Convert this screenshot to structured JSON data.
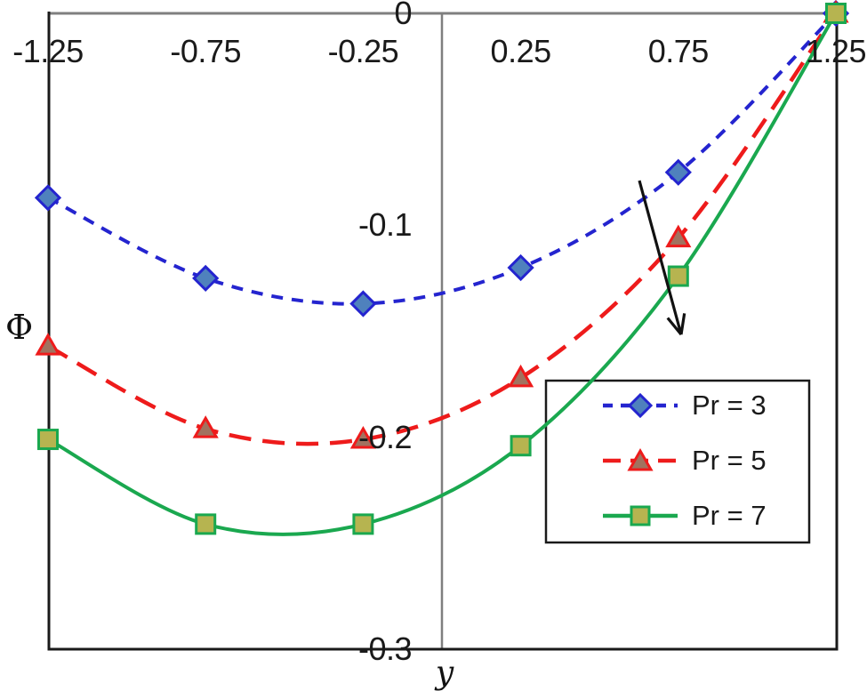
{
  "chart_data": {
    "type": "line",
    "title": "",
    "xlabel": "y",
    "ylabel": "Φ",
    "xlim": [
      -1.25,
      1.25
    ],
    "ylim": [
      -0.3,
      0
    ],
    "grid": false,
    "xticks": [
      -1.25,
      -0.75,
      -0.25,
      0.25,
      0.75,
      1.25
    ],
    "yticks": [
      0,
      -0.1,
      -0.2,
      -0.3
    ],
    "x": [
      -1.25,
      -0.75,
      -0.25,
      0.25,
      0.75,
      1.25
    ],
    "series": [
      {
        "name": "Pr = 3",
        "color": "#2424cf",
        "line_style": "dashed-short",
        "marker": "diamond",
        "marker_fill": "#4f81bd",
        "values": [
          -0.087,
          -0.125,
          -0.137,
          -0.12,
          -0.075,
          0
        ]
      },
      {
        "name": "Pr = 5",
        "color": "#ee1b1b",
        "line_style": "dashed-long",
        "marker": "triangle",
        "marker_fill": "#a1725f",
        "values": [
          -0.157,
          -0.196,
          -0.201,
          -0.172,
          -0.106,
          0
        ]
      },
      {
        "name": "Pr = 7",
        "color": "#1aa84f",
        "line_style": "solid",
        "marker": "square",
        "marker_fill": "#b6b450",
        "values": [
          -0.201,
          -0.241,
          -0.241,
          -0.204,
          -0.124,
          0
        ]
      }
    ],
    "legend": {
      "position": "center-right",
      "border_color": "#1a1a1a",
      "background": "#ffffff"
    },
    "annotations": [
      {
        "type": "arrow",
        "meaning": "direction of increasing Pr",
        "color": "#111111",
        "from_xy": [
          0.6264,
          -0.0789
        ],
        "to_xy": [
          0.759,
          -0.1515
        ]
      }
    ],
    "axis_colors": {
      "box": "#1a1a1a",
      "zero_axes": "#7f7f7f"
    }
  }
}
